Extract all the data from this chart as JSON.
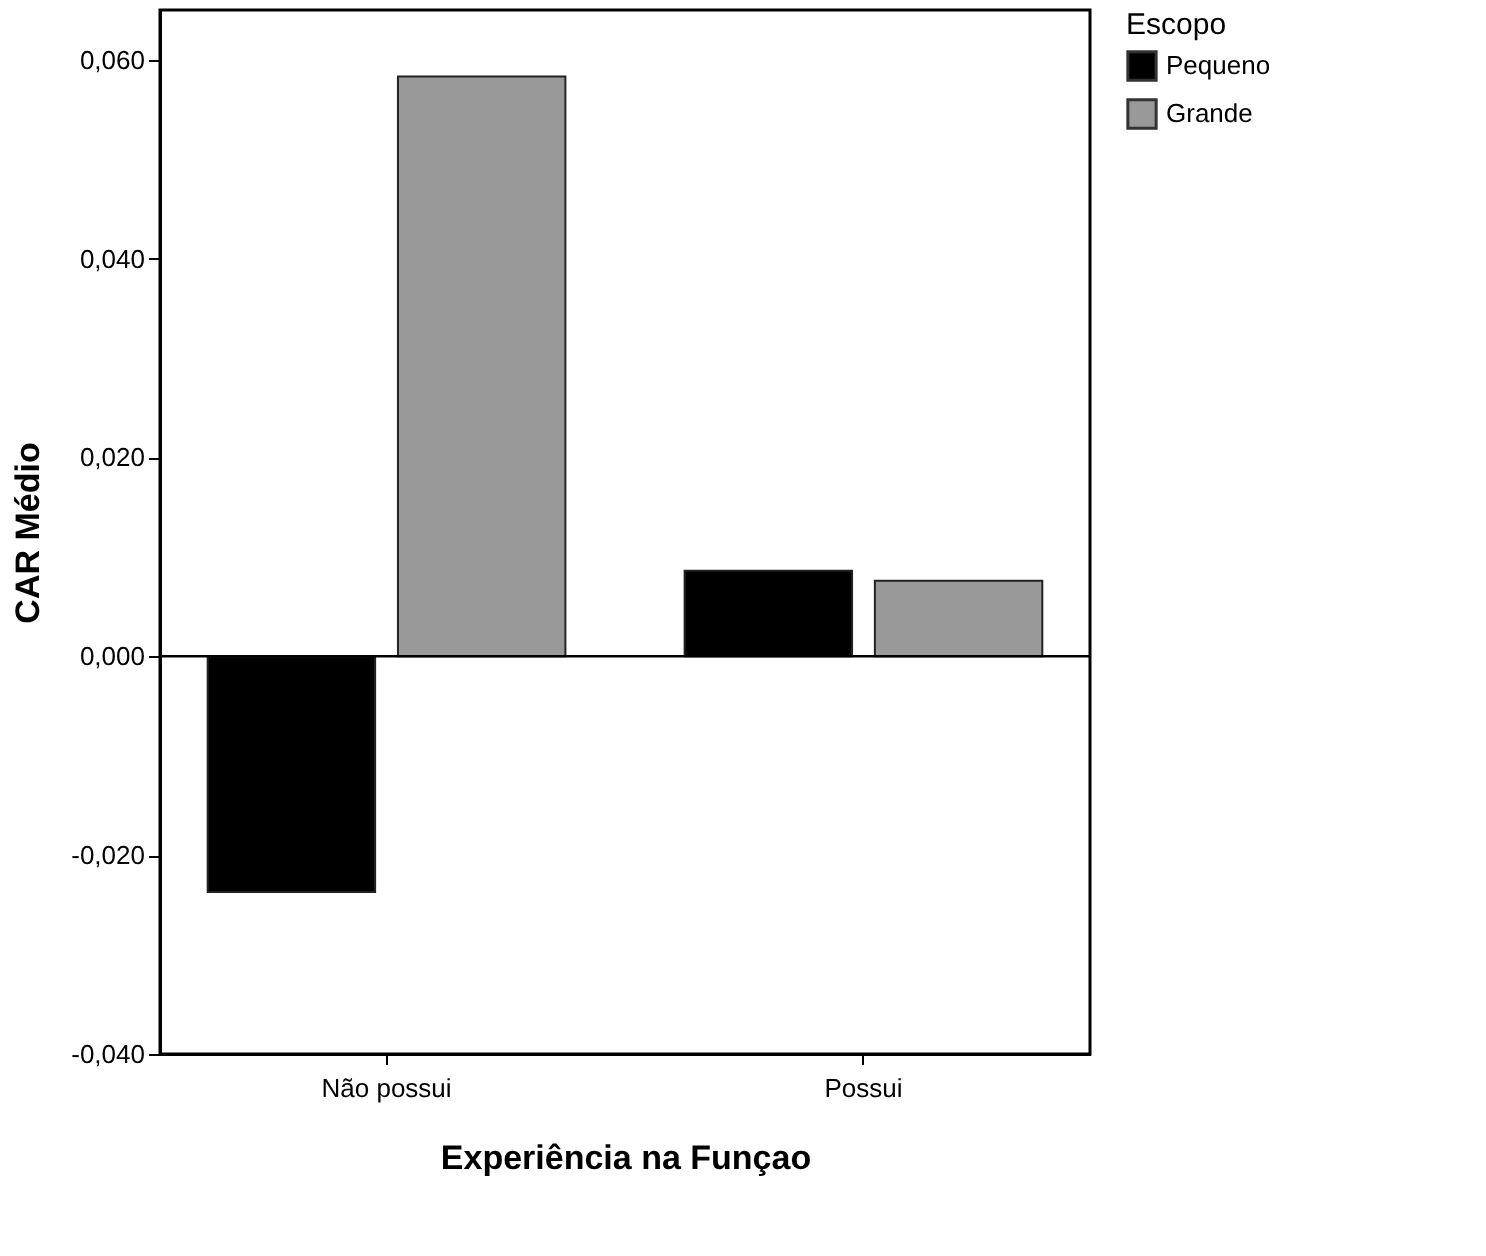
{
  "chart_data": {
    "type": "bar",
    "xlabel": "Experiência na Funçao",
    "ylabel": "CAR Médio",
    "legend_title": "Escopo",
    "legend": "top right",
    "grid": false,
    "categories": [
      "Não possui",
      "Possui"
    ],
    "series": [
      {
        "name": "Pequeno",
        "color": "#000000",
        "values": [
          -0.0237,
          0.0086
        ]
      },
      {
        "name": "Grande",
        "color": "#999999",
        "values": [
          0.0583,
          0.0076
        ]
      }
    ],
    "ylim": [
      -0.04,
      0.065
    ],
    "yticks": [
      {
        "value": -0.04,
        "label": "-0,040"
      },
      {
        "value": -0.02,
        "label": "-0,020"
      },
      {
        "value": 0,
        "label": "0,000"
      },
      {
        "value": 0.02,
        "label": "0,020"
      },
      {
        "value": 0.04,
        "label": "0,040"
      },
      {
        "value": 0.06,
        "label": "0,060"
      }
    ],
    "ref_lines": [
      {
        "axis": "y",
        "value": 0,
        "label": null,
        "color": "#000000"
      }
    ]
  }
}
